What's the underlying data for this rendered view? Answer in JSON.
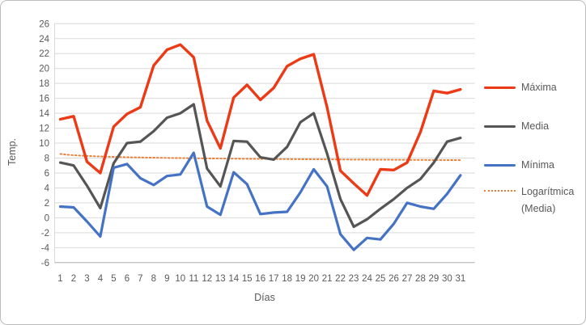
{
  "chart_data": {
    "type": "line",
    "title": "",
    "xlabel": "Días",
    "ylabel": "Temp.",
    "ylim": [
      -6,
      26
    ],
    "ytick_step": 2,
    "grid": true,
    "grid_color": "#d9d9d9",
    "axis_line_color": "#b7b7b7",
    "text_color": "#595959",
    "legend_position": "right",
    "categories": [
      1,
      2,
      3,
      4,
      5,
      6,
      7,
      8,
      9,
      10,
      11,
      12,
      13,
      14,
      15,
      16,
      17,
      18,
      19,
      20,
      21,
      22,
      23,
      24,
      25,
      26,
      27,
      28,
      29,
      30,
      31
    ],
    "series": [
      {
        "name": "Máxima",
        "color": "#ed3a16",
        "stroke_width": 3.4,
        "values": [
          13.2,
          13.6,
          7.5,
          6.0,
          12.2,
          13.9,
          14.8,
          20.4,
          22.5,
          23.2,
          21.5,
          13.0,
          9.3,
          16.1,
          17.8,
          15.8,
          17.4,
          20.3,
          21.3,
          21.9,
          14.8,
          6.3,
          4.6,
          3.0,
          6.5,
          6.4,
          7.4,
          11.5,
          17.0,
          16.7,
          17.2
        ]
      },
      {
        "name": "Media",
        "color": "#555555",
        "stroke_width": 3.2,
        "values": [
          7.4,
          7.0,
          4.3,
          1.3,
          7.3,
          10.0,
          10.2,
          11.6,
          13.4,
          14.0,
          15.2,
          6.6,
          4.2,
          10.3,
          10.2,
          8.1,
          7.8,
          9.5,
          12.8,
          14.0,
          8.6,
          2.5,
          -1.2,
          -0.2,
          1.2,
          2.5,
          4.0,
          5.2,
          7.4,
          10.2,
          10.7
        ]
      },
      {
        "name": "Mínima",
        "color": "#4472c4",
        "stroke_width": 3.2,
        "values": [
          1.5,
          1.4,
          -0.5,
          -2.5,
          6.7,
          7.2,
          5.3,
          4.4,
          5.6,
          5.8,
          8.7,
          1.5,
          0.4,
          6.1,
          4.5,
          0.5,
          0.7,
          0.8,
          3.4,
          6.5,
          4.2,
          -2.2,
          -4.3,
          -2.7,
          -2.9,
          -0.8,
          2.0,
          1.5,
          1.2,
          3.2,
          5.7
        ]
      }
    ],
    "trendline": {
      "name": "Logarítmica (Media)",
      "legend_line1": "Logarítmica",
      "legend_line2": "(Media)",
      "of_series": "Media",
      "type": "logarithmic",
      "color": "#ed7d31",
      "style": "dotted",
      "value_at_day1": 8.55,
      "value_at_day31": 7.73,
      "formula_a": 8.55,
      "formula_b": 0.24
    }
  }
}
